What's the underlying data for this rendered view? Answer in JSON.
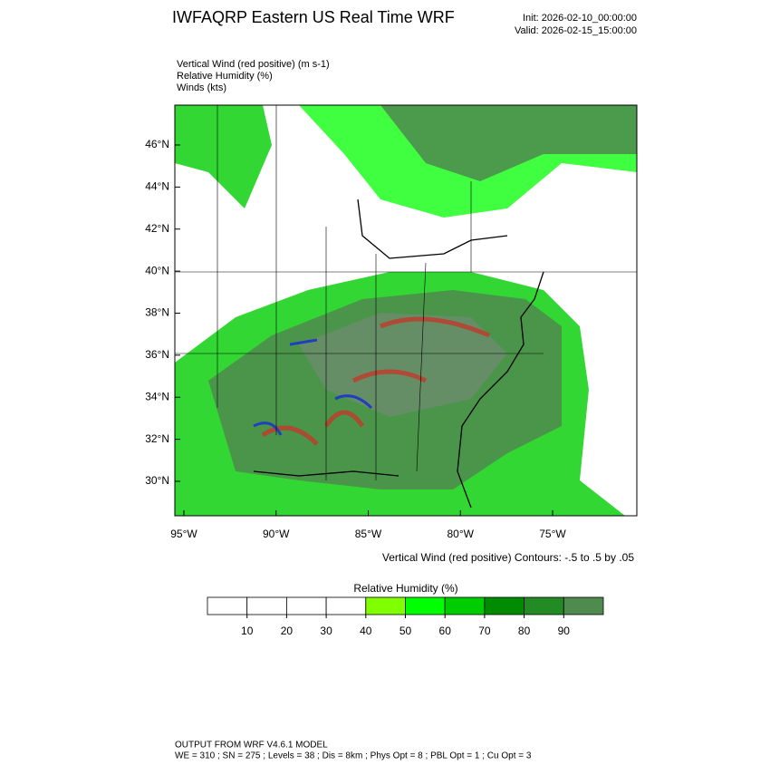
{
  "header": {
    "title": "IWFAQRP Eastern US Real Time WRF",
    "init": "Init: 2026-02-10_00:00:00",
    "valid": "Valid: 2026-02-15_15:00:00"
  },
  "fields": [
    "Vertical Wind (red positive)   (m s-1)",
    "Relative Humidity   (%)",
    "Winds   (kts)"
  ],
  "map": {
    "lat_ticks": [
      {
        "value": 30,
        "label": "30°N"
      },
      {
        "value": 32,
        "label": "32°N"
      },
      {
        "value": 34,
        "label": "34°N"
      },
      {
        "value": 36,
        "label": "36°N"
      },
      {
        "value": 38,
        "label": "38°N"
      },
      {
        "value": 40,
        "label": "40°N"
      },
      {
        "value": 42,
        "label": "42°N"
      },
      {
        "value": 44,
        "label": "44°N"
      },
      {
        "value": 46,
        "label": "46°N"
      }
    ],
    "lon_ticks": [
      {
        "value": -95,
        "label": "95°W"
      },
      {
        "value": -90,
        "label": "90°W"
      },
      {
        "value": -85,
        "label": "85°W"
      },
      {
        "value": -80,
        "label": "80°W"
      },
      {
        "value": -75,
        "label": "75°W"
      }
    ],
    "caption": "Vertical Wind (red positive) Contours: -.5 to .5 by .05"
  },
  "colorbar": {
    "title": "Relative Humidity  (%)",
    "colors": [
      "#ffffff",
      "#ffffff",
      "#ffffff",
      "#ffffff",
      "#7fff00",
      "#00ff00",
      "#00cd00",
      "#008b00",
      "#238b23",
      "#4f8a4f"
    ],
    "ticks": [
      10,
      20,
      30,
      40,
      50,
      60,
      70,
      80,
      90
    ]
  },
  "footer": [
    "OUTPUT FROM WRF V4.6.1 MODEL",
    "WE = 310 ; SN = 275 ; Levels = 38 ; Dis = 8km ; Phys Opt = 8 ; PBL Opt = 1 ; Cu Opt = 3"
  ]
}
